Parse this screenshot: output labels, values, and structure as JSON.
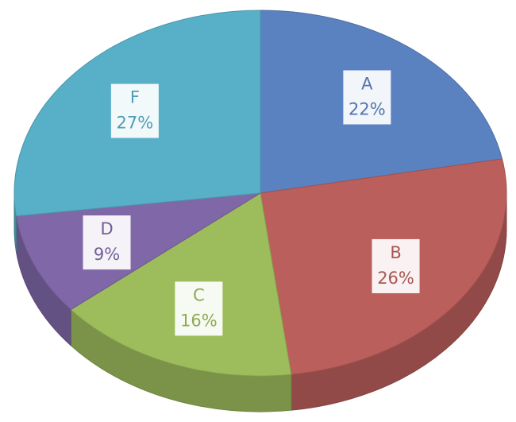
{
  "chart_data": {
    "type": "pie",
    "categories": [
      "A",
      "B",
      "C",
      "D",
      "F"
    ],
    "values": [
      22,
      26,
      16,
      9,
      27
    ],
    "value_labels": [
      "22%",
      "26%",
      "16%",
      "9%",
      "27%"
    ],
    "colors": [
      "#5b82c0",
      "#bb5f5c",
      "#9dbd5c",
      "#8068a8",
      "#58b0c8"
    ]
  }
}
